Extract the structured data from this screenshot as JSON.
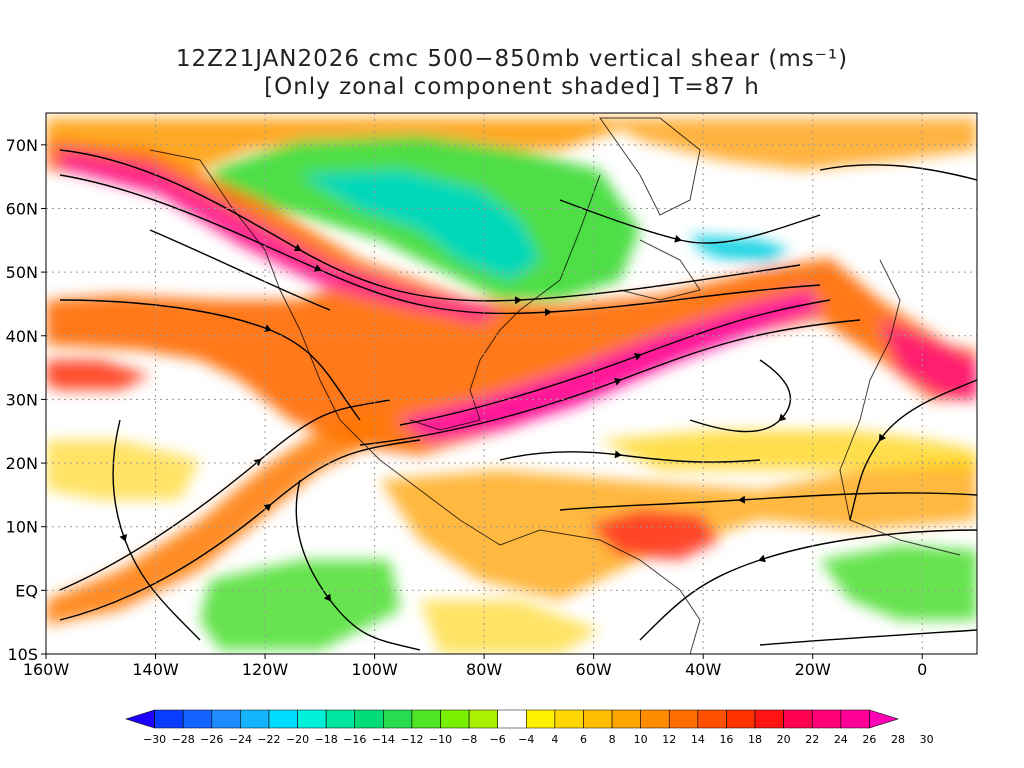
{
  "title": {
    "line1": "12Z21JAN2026 cmc 500−850mb vertical shear (ms⁻¹)",
    "line2": "[Only zonal component shaded] T=87 h"
  },
  "map": {
    "lat_labels": [
      "70N",
      "60N",
      "50N",
      "40N",
      "30N",
      "20N",
      "10N",
      "EQ",
      "10S"
    ],
    "lon_labels": [
      "160W",
      "140W",
      "120W",
      "100W",
      "80W",
      "60W",
      "40W",
      "20W",
      "0"
    ],
    "lon_range": [
      -160,
      10
    ],
    "lat_range": [
      -10,
      75
    ]
  },
  "colorbar": {
    "tick_labels": [
      "−30",
      "−28",
      "−26",
      "−24",
      "−22",
      "−20",
      "−18",
      "−16",
      "−14",
      "−12",
      "−10",
      "−8",
      "−6",
      "−4",
      "4",
      "6",
      "8",
      "10",
      "12",
      "14",
      "16",
      "18",
      "20",
      "22",
      "24",
      "26",
      "28",
      "30"
    ],
    "colors": [
      "#1e00ff",
      "#0a3cff",
      "#1464ff",
      "#1e8cff",
      "#14b4ff",
      "#00dcff",
      "#00f0dc",
      "#00e6a0",
      "#00dc78",
      "#28dc50",
      "#50e628",
      "#78f000",
      "#aaf000",
      "#ffffff",
      "#fff000",
      "#ffd700",
      "#ffbe00",
      "#ffa500",
      "#ff8c00",
      "#ff6e00",
      "#ff5000",
      "#ff3200",
      "#ff1414",
      "#ff0050",
      "#ff0078",
      "#ff0096",
      "#ff00b4"
    ]
  }
}
